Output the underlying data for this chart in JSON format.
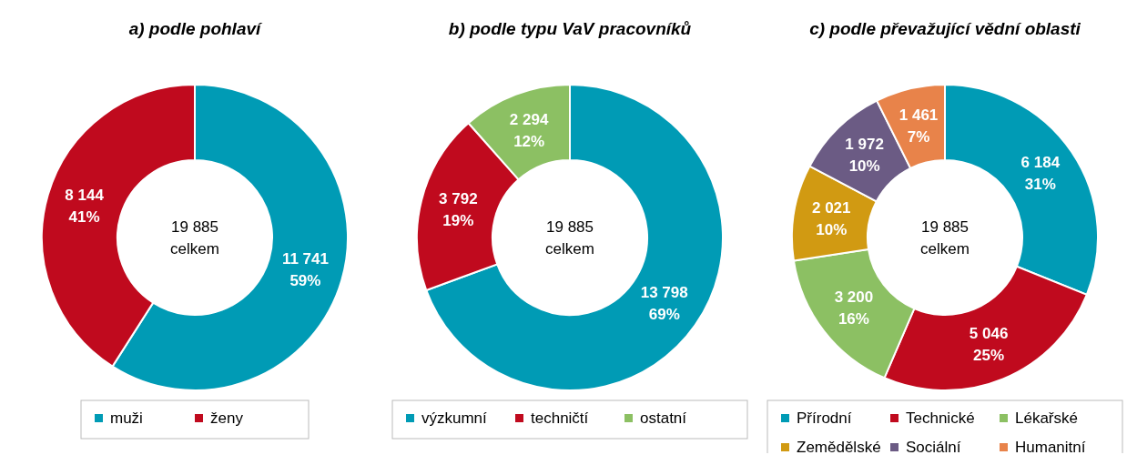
{
  "chart_data": [
    {
      "type": "donut",
      "title": "a) podle pohlaví",
      "categories": [
        "muži",
        "ženy"
      ],
      "values": [
        11741,
        8144
      ],
      "colors": [
        "#009bb5",
        "#c00a1e"
      ],
      "value_labels": [
        "11 741\n59%",
        "8 144\n41%"
      ],
      "annotations": [
        "19 885\ncelkem"
      ],
      "legend": "bottom"
    },
    {
      "type": "donut",
      "title": "b) podle typu VaV pracovníků",
      "categories": [
        "výzkumní",
        "techničtí",
        "ostatní"
      ],
      "values": [
        13798,
        3792,
        2294
      ],
      "colors": [
        "#009bb5",
        "#c00a1e",
        "#8cc063"
      ],
      "value_labels": [
        "13 798\n69%",
        "3 792\n19%",
        "2 294\n12%"
      ],
      "annotations": [
        "19 885\ncelkem"
      ],
      "legend": "bottom"
    },
    {
      "type": "donut",
      "title": "c) podle převažující vědní oblasti",
      "categories": [
        "Přírodní",
        "Technické",
        "Lékařské",
        "Zemědělské",
        "Sociální",
        "Humanitní"
      ],
      "values": [
        6184,
        5046,
        3200,
        2021,
        1972,
        1461
      ],
      "colors": [
        "#009bb5",
        "#c00a1e",
        "#8cc063",
        "#d19a12",
        "#6b5b84",
        "#e8834a"
      ],
      "value_labels": [
        "6 184\n31%",
        "5 046\n25%",
        "3 200\n16%",
        "2 021\n10%",
        "1 972\n10%",
        "1 461\n7%"
      ],
      "annotations": [
        "19 885\ncelkem"
      ],
      "legend": "bottom"
    }
  ]
}
